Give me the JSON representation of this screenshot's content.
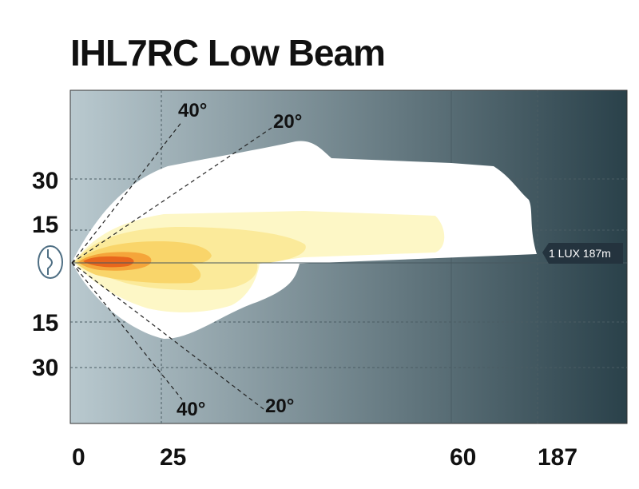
{
  "chart_data": {
    "type": "beam-pattern",
    "title": "IHL7RC Low Beam",
    "x_ticks": [
      {
        "label": "0",
        "pos": 0
      },
      {
        "label": "25",
        "pos": 25
      },
      {
        "label": "60",
        "pos": 60
      },
      {
        "label": "187",
        "pos": 187
      }
    ],
    "y_ticks": [
      {
        "label": "30",
        "pos": 30
      },
      {
        "label": "15",
        "pos": 15
      },
      {
        "label": "15",
        "pos": -15
      },
      {
        "label": "30",
        "pos": -30
      }
    ],
    "angle_guides": [
      {
        "label": "40°",
        "side": "upper"
      },
      {
        "label": "20°",
        "side": "upper"
      },
      {
        "label": "40°",
        "side": "lower"
      },
      {
        "label": "20°",
        "side": "lower"
      }
    ],
    "annotation": {
      "label": "1 LUX 187m",
      "distance": 187
    },
    "colors": {
      "background_left": "#b9c9cf",
      "background_right": "#2a414a",
      "zone_white": "#ffffff",
      "zone_pale_yellow": "#fdf7c6",
      "zone_yellow": "#fbea9a",
      "zone_gold": "#f9d56a",
      "zone_orange": "#f5a53a",
      "zone_hot": "#e8661c",
      "lux_badge": "#24333e"
    }
  }
}
